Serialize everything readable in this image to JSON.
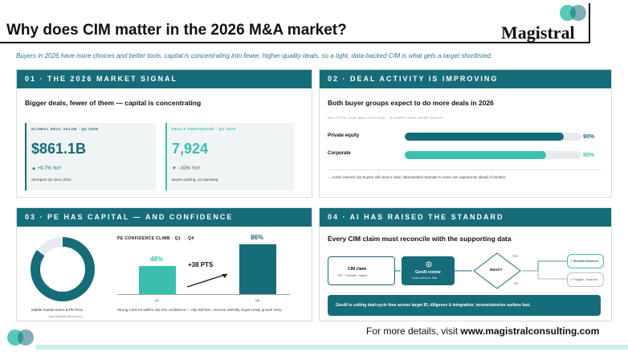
{
  "header": {
    "title": "Why does CIM matter in the 2026 M&A market?",
    "logo": "Magistral"
  },
  "subtitle": "Buyers in 2026 have more choices and better tools, capital is concentrating into fewer, higher-quality deals, so a tight, data-backed CIM is what gets a target shortlisted.",
  "colors": {
    "teal_dark": "#166c78",
    "teal_light": "#3bbfad",
    "track": "#e6ecee"
  },
  "panel1": {
    "heading": "01 · THE 2026 MARKET SIGNAL",
    "subheading": "Bigger deals, fewer of them — capital is concentrating",
    "card_a": {
      "kicker": "GLOBAL DEAL VALUE · Q1 2026",
      "value": "$861.1B",
      "delta": "▲ +9.7% YoY",
      "note": "Strongest Q1 since 2021"
    },
    "card_b": {
      "kicker": "DEALS ANNOUNCED · Q1 2026",
      "value": "7,924",
      "delta": "▼ −30% YoY",
      "note": "Buyers picking, not spending"
    }
  },
  "panel2": {
    "heading": "02 · DEAL ACTIVITY IS IMPROVING",
    "subheading": "Both buyer groups expect to do more deals in 2026",
    "kicker": "DELOITTE 2026 M&A OUTLOOK · % EXPECTING MORE DEALS",
    "bars": [
      {
        "label": "Private equity",
        "value": 90,
        "pct_label": "90%"
      },
      {
        "label": "Corporate",
        "value": 80,
        "pct_label": "80%"
      }
    ],
    "foot": "→ Active interest, but buyers still need a clear, data-backed rationale to move one opportunity ahead of another."
  },
  "panel3": {
    "heading": "03 · PE HAS CAPITAL — AND CONFIDENCE",
    "donut_caption": "Middle-market execs & PE firms",
    "donut_source": "Bain/Intralinks M&A survey",
    "donut_value": 0.85,
    "kicker": "PE CONFIDENCE CLIMB · Q1 → Q4",
    "chart_data": {
      "type": "bar",
      "categories": [
        "Q1",
        "Q4"
      ],
      "values": [
        48,
        86
      ],
      "value_labels": [
        "48%",
        "86%"
      ],
      "ylim": [
        0,
        100
      ]
    },
    "pts_label": "+38 PTS",
    "foot": "Strong CIMs let sellers ride this confidence — tidy EBITDA, revenue visibility, buyer-ready growth story."
  },
  "panel4": {
    "heading": "04 · AI HAS RAISED THE STANDARD",
    "subheading": "Every CIM claim must reconcile with the supporting data",
    "box1_title": "CIM claim",
    "box1_text": "KPI · Forecast · market",
    "box2_title": "GenAI review",
    "box2_text": "cross-check vs. files",
    "diamond": "Match?",
    "yes": "YES",
    "no": "NO",
    "ok_label": "✓ Shortlist advances",
    "bad_label": "✕ Flagged · drops out",
    "banner": "GenAI is cutting deal-cycle time across target ID, diligence & integration, inconsistencies surface fast."
  },
  "footer": {
    "prefix": "For more details, visit ",
    "url": "www.magistralconsulting.com"
  }
}
